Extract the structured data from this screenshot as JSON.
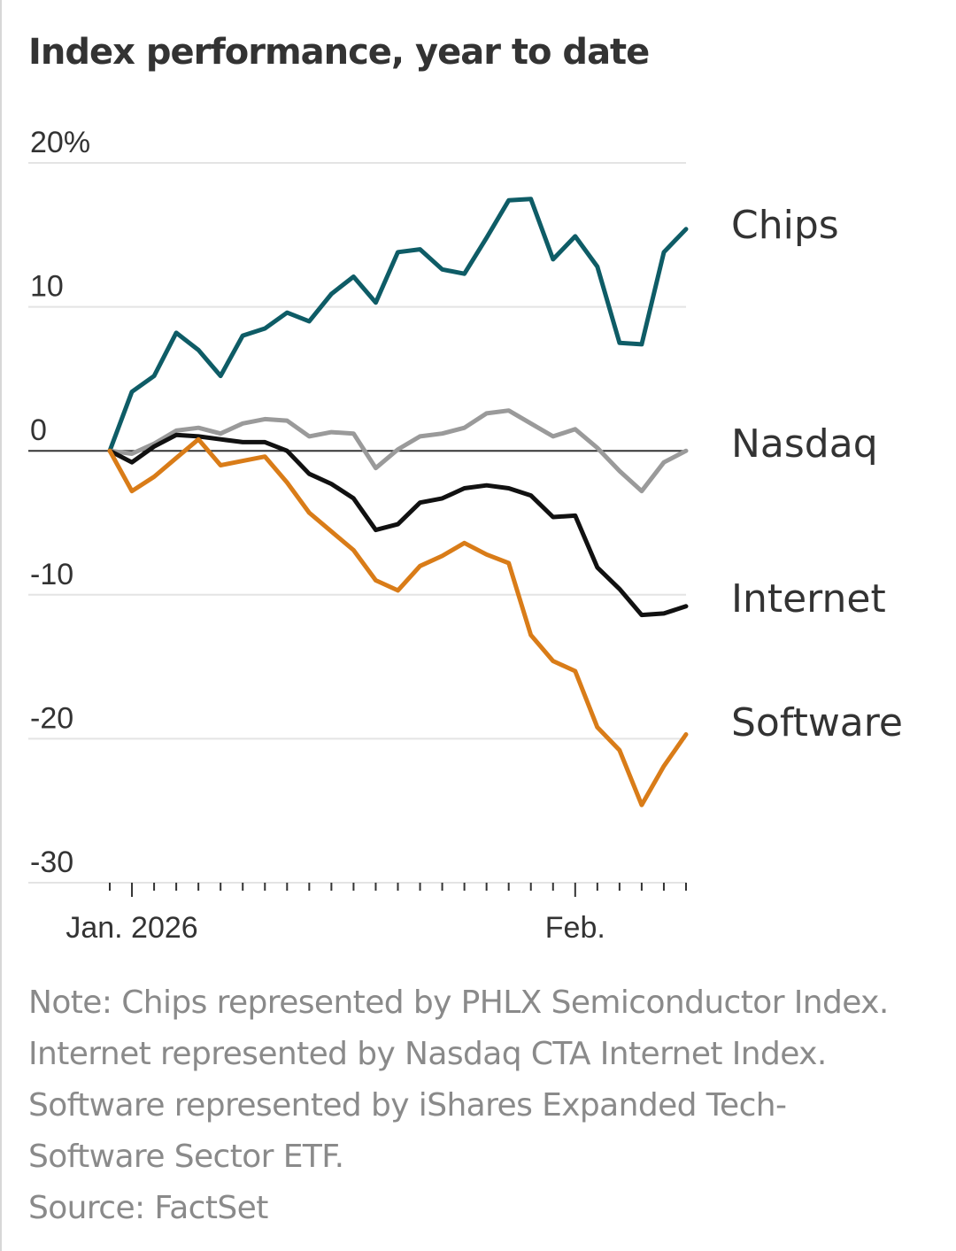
{
  "title": "Index performance, year to date",
  "note": "Note: Chips represented by PHLX Semiconductor Index. Internet represented by Nasdaq CTA Internet Index. Software represented by iShares Expanded Tech-Software Sector ETF.",
  "source": "Source: FactSet",
  "chart_data": {
    "type": "line",
    "title": "Index performance, year to date",
    "xlabel": "",
    "ylabel": "",
    "ylim": [
      -30,
      20
    ],
    "y_ticks": [
      {
        "value": 20,
        "label": "20%"
      },
      {
        "value": 10,
        "label": "10"
      },
      {
        "value": 0,
        "label": "0"
      },
      {
        "value": -10,
        "label": "-10"
      },
      {
        "value": -20,
        "label": "-20"
      },
      {
        "value": -30,
        "label": "-30"
      }
    ],
    "x_labels": [
      {
        "index": 1,
        "label": "Jan. 2026"
      },
      {
        "index": 21,
        "label": "Feb."
      }
    ],
    "x_tick_count": 27,
    "legend": "direct labels at right end of each line",
    "series": [
      {
        "name": "Chips",
        "label": "Chips",
        "color": "#0e5c66",
        "values": [
          0,
          4.1,
          5.2,
          8.2,
          7.0,
          5.2,
          8.0,
          8.5,
          9.6,
          9.0,
          10.9,
          12.1,
          10.3,
          13.8,
          14.0,
          12.6,
          12.3,
          14.8,
          17.4,
          17.5,
          13.3,
          14.9,
          12.8,
          7.5,
          7.4,
          13.8,
          15.4
        ]
      },
      {
        "name": "Nasdaq",
        "label": "Nasdaq",
        "color": "#9a9a9a",
        "values": [
          0,
          -0.2,
          0.5,
          1.4,
          1.6,
          1.2,
          1.9,
          2.2,
          2.1,
          1.0,
          1.3,
          1.2,
          -1.2,
          0.1,
          1.0,
          1.2,
          1.6,
          2.6,
          2.8,
          1.9,
          1.0,
          1.5,
          0.2,
          -1.4,
          -2.8,
          -0.8,
          0.0
        ]
      },
      {
        "name": "Internet",
        "label": "Internet",
        "color": "#111111",
        "values": [
          0,
          -0.8,
          0.3,
          1.1,
          1.0,
          0.8,
          0.6,
          0.6,
          0.0,
          -1.6,
          -2.3,
          -3.3,
          -5.5,
          -5.1,
          -3.6,
          -3.3,
          -2.6,
          -2.4,
          -2.6,
          -3.1,
          -4.6,
          -4.5,
          -8.1,
          -9.6,
          -11.4,
          -11.3,
          -10.8
        ]
      },
      {
        "name": "Software",
        "label": "Software",
        "color": "#d97c18",
        "values": [
          0,
          -2.8,
          -1.8,
          -0.5,
          0.8,
          -1.0,
          -0.7,
          -0.4,
          -2.2,
          -4.3,
          -5.6,
          -6.9,
          -9.0,
          -9.7,
          -8.0,
          -7.3,
          -6.4,
          -7.2,
          -7.8,
          -12.8,
          -14.6,
          -15.3,
          -19.2,
          -20.8,
          -24.6,
          -21.9,
          -19.7
        ]
      }
    ]
  }
}
